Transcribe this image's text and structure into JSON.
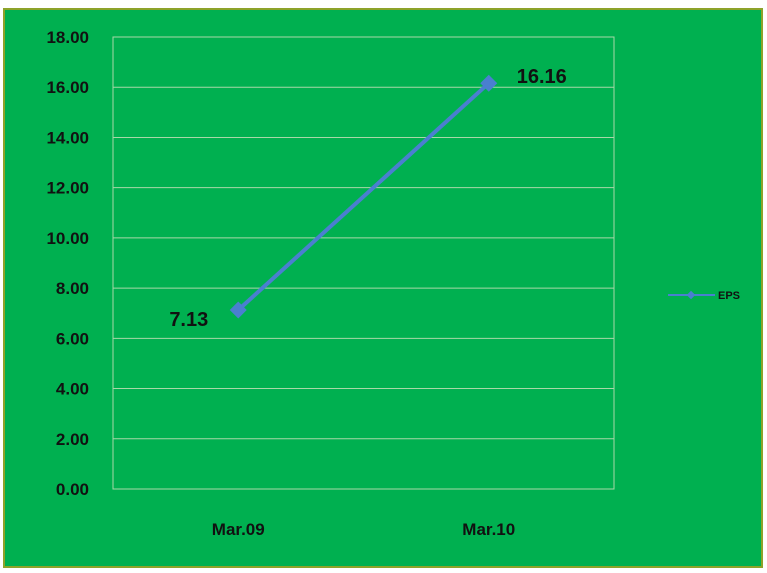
{
  "colors": {
    "background": "#00b050",
    "frame_border": "#8da32a",
    "grid": "#a8d8a8",
    "series_line": "#4a7fd0",
    "text": "#111111"
  },
  "chart_data": {
    "type": "line",
    "title": "",
    "xlabel": "",
    "ylabel": "",
    "categories": [
      "Mar.09",
      "Mar.10"
    ],
    "series": [
      {
        "name": "EPS",
        "values": [
          7.13,
          16.16
        ],
        "data_labels": [
          "7.13",
          "16.16"
        ]
      }
    ],
    "ylim": [
      0,
      18
    ],
    "y_ticks": [
      "0.00",
      "2.00",
      "4.00",
      "6.00",
      "8.00",
      "10.00",
      "12.00",
      "14.00",
      "16.00",
      "18.00"
    ],
    "grid": true,
    "legend_position": "right"
  }
}
